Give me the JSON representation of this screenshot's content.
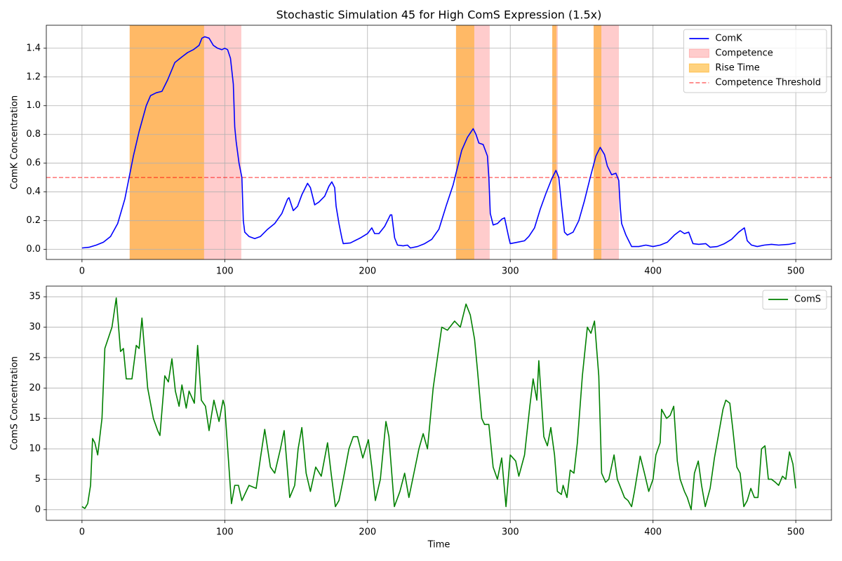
{
  "chart_data": [
    {
      "type": "line",
      "title": "Stochastic Simulation 45 for High ComS Expression (1.5x)",
      "ylabel": "ComK Concentration",
      "xlim": [
        -25,
        525
      ],
      "xticks": [
        0,
        100,
        200,
        300,
        400,
        500
      ],
      "ylim": [
        -0.07,
        1.56
      ],
      "yticks": [
        {
          "value": 0,
          "label": "0.0"
        },
        {
          "value": 0.2,
          "label": "0.2"
        },
        {
          "value": 0.4,
          "label": "0.4"
        },
        {
          "value": 0.6,
          "label": "0.6"
        },
        {
          "value": 0.8,
          "label": "0.8"
        },
        {
          "value": 1.0,
          "label": "1.0"
        },
        {
          "value": 1.2,
          "label": "1.2"
        },
        {
          "value": 1.4,
          "label": "1.4"
        }
      ],
      "grid": true,
      "legend": "upper right",
      "x": [
        0,
        5,
        10,
        15,
        20,
        25,
        30,
        33,
        36,
        40,
        45,
        48,
        52,
        56,
        60,
        65,
        70,
        74,
        78,
        82,
        84,
        86,
        89,
        92,
        95,
        98,
        100,
        102,
        104,
        106,
        107,
        108,
        110,
        112,
        113,
        114,
        117,
        121,
        125,
        130,
        135,
        140,
        144,
        145,
        148,
        151,
        154,
        158,
        160,
        163,
        166,
        170,
        173,
        175,
        177,
        178,
        180,
        182,
        183,
        188,
        195,
        200,
        203,
        205,
        208,
        212,
        216,
        217,
        219,
        221,
        225,
        228,
        230,
        235,
        240,
        245,
        250,
        255,
        260,
        263,
        266,
        270,
        274,
        276,
        278,
        281,
        284,
        285,
        286,
        288,
        291,
        294,
        296,
        299,
        300,
        305,
        310,
        313,
        317,
        321,
        325,
        329,
        332,
        334,
        336,
        338,
        340,
        344,
        348,
        352,
        356,
        360,
        363,
        366,
        368,
        371,
        374,
        376,
        377,
        378,
        381,
        383,
        385,
        390,
        395,
        400,
        405,
        410,
        415,
        419,
        422,
        425,
        428,
        432,
        437,
        440,
        445,
        450,
        455,
        460,
        464,
        466,
        469,
        473,
        478,
        483,
        488,
        495,
        500
      ],
      "series": [
        {
          "name": "ComK",
          "color": "#0000ff",
          "values": [
            0.01,
            0.015,
            0.03,
            0.05,
            0.09,
            0.18,
            0.35,
            0.5,
            0.65,
            0.82,
            1.0,
            1.07,
            1.09,
            1.1,
            1.18,
            1.3,
            1.34,
            1.37,
            1.39,
            1.42,
            1.47,
            1.48,
            1.47,
            1.42,
            1.4,
            1.39,
            1.4,
            1.39,
            1.33,
            1.15,
            0.85,
            0.75,
            0.6,
            0.5,
            0.2,
            0.12,
            0.09,
            0.075,
            0.09,
            0.14,
            0.18,
            0.25,
            0.35,
            0.36,
            0.27,
            0.3,
            0.38,
            0.46,
            0.43,
            0.31,
            0.33,
            0.37,
            0.44,
            0.47,
            0.43,
            0.3,
            0.18,
            0.08,
            0.04,
            0.045,
            0.08,
            0.11,
            0.15,
            0.11,
            0.11,
            0.16,
            0.24,
            0.24,
            0.08,
            0.03,
            0.025,
            0.03,
            0.01,
            0.02,
            0.04,
            0.07,
            0.14,
            0.3,
            0.45,
            0.57,
            0.69,
            0.78,
            0.84,
            0.8,
            0.74,
            0.73,
            0.65,
            0.5,
            0.25,
            0.17,
            0.18,
            0.21,
            0.22,
            0.08,
            0.04,
            0.05,
            0.06,
            0.09,
            0.15,
            0.28,
            0.39,
            0.49,
            0.55,
            0.5,
            0.3,
            0.12,
            0.1,
            0.12,
            0.2,
            0.34,
            0.5,
            0.65,
            0.71,
            0.66,
            0.58,
            0.52,
            0.53,
            0.48,
            0.3,
            0.18,
            0.1,
            0.06,
            0.02,
            0.02,
            0.03,
            0.02,
            0.03,
            0.05,
            0.1,
            0.13,
            0.11,
            0.12,
            0.04,
            0.035,
            0.04,
            0.015,
            0.02,
            0.04,
            0.07,
            0.12,
            0.15,
            0.06,
            0.03,
            0.02,
            0.03,
            0.035,
            0.03,
            0.035,
            0.045
          ]
        }
      ],
      "shaded": [
        {
          "name": "Competence",
          "color": "rgba(255,0,0,0.2)",
          "spans": [
            [
              33.4,
              111.6
            ],
            [
              262,
              285.6
            ],
            [
              329.4,
              333.3
            ],
            [
              358.4,
              376.1
            ]
          ]
        },
        {
          "name": "Rise Time",
          "color": "rgba(255,165,0,0.5)",
          "spans": [
            [
              33.4,
              85.5
            ],
            [
              262,
              274.8
            ],
            [
              329.4,
              332.4
            ],
            [
              358.4,
              363.8
            ]
          ]
        }
      ],
      "threshold": {
        "name": "Competence Threshold",
        "value": 0.5,
        "color": "rgba(255,0,0,0.5)"
      }
    },
    {
      "type": "line",
      "xlabel": "Time",
      "ylabel": "ComS Concentration",
      "xlim": [
        -25,
        525
      ],
      "xticks": [
        0,
        100,
        200,
        300,
        400,
        500
      ],
      "ylim": [
        -1.75,
        36.75
      ],
      "yticks": [
        0,
        5,
        10,
        15,
        20,
        25,
        30,
        35
      ],
      "grid": true,
      "legend": "upper right",
      "x": [
        0,
        2,
        4,
        6,
        7.4,
        9,
        11,
        14,
        16,
        21,
        24,
        27,
        29,
        31,
        35,
        38,
        40,
        42,
        46,
        50,
        53,
        54.6,
        58,
        60.5,
        63,
        65.4,
        68,
        70,
        73,
        75,
        78.7,
        81,
        83.6,
        86.5,
        89,
        92.4,
        96,
        98.8,
        100,
        104.7,
        107,
        109.6,
        112,
        117,
        122,
        125,
        128,
        132,
        135,
        139,
        141.6,
        145.5,
        149,
        151.4,
        154,
        157,
        160,
        163.7,
        167.6,
        172,
        174.5,
        177.5,
        180,
        183,
        187,
        190,
        193,
        196.7,
        200.6,
        203,
        205.5,
        209,
        212.9,
        215,
        218.8,
        222.7,
        226,
        229,
        232.5,
        236,
        239,
        242,
        246,
        249,
        252,
        256,
        261,
        265,
        269,
        272,
        275,
        277,
        280,
        282,
        285,
        288,
        291,
        294,
        297,
        300,
        303.8,
        306,
        310,
        313.7,
        316,
        318.6,
        320,
        323.5,
        326,
        328.4,
        331,
        333,
        335.8,
        337,
        339.7,
        342,
        344.6,
        347,
        350.5,
        354,
        356.5,
        359,
        362,
        364,
        366.8,
        369,
        372.7,
        375,
        380,
        382.5,
        385,
        387,
        391,
        394,
        397,
        400,
        402,
        405,
        406,
        409.5,
        412,
        414.5,
        417,
        419,
        422,
        424,
        426.7,
        429,
        431.7,
        434,
        436.6,
        440,
        443,
        446.4,
        449,
        451,
        453.8,
        456,
        458.7,
        461,
        463.6,
        466,
        468.5,
        471,
        473.5,
        476,
        478.4,
        480.8,
        483,
        485.7,
        488,
        490.7,
        493,
        495.6,
        498,
        500
      ],
      "series": [
        {
          "name": "ComS",
          "color": "#008000",
          "values": [
            0.5,
            0.2,
            1,
            4,
            11.7,
            11,
            9,
            15,
            26.5,
            30,
            34.8,
            26,
            26.5,
            21.5,
            21.5,
            27,
            26.5,
            31.5,
            20,
            15,
            13,
            12.2,
            22,
            21,
            24.8,
            19.5,
            17,
            20.5,
            16.7,
            19.5,
            17.5,
            27,
            18,
            17,
            13,
            18,
            14.5,
            18,
            17,
            1,
            4,
            4,
            1.5,
            4,
            3.5,
            8.5,
            13.2,
            7,
            6,
            10,
            13,
            2,
            4,
            10,
            13.5,
            6,
            3,
            7,
            5.5,
            11,
            6,
            0.5,
            1.5,
            5,
            10,
            12,
            12,
            8.5,
            11.5,
            7,
            1.5,
            5,
            14.5,
            12,
            0.5,
            3,
            6,
            2,
            6,
            10,
            12.5,
            10,
            20,
            25,
            30,
            29.5,
            31,
            30,
            33.8,
            32,
            28,
            23,
            15,
            14,
            14,
            7,
            5,
            8.5,
            0.5,
            9,
            8,
            5.5,
            9,
            17,
            21.5,
            18,
            24.5,
            12,
            10.5,
            13.5,
            9,
            3,
            2.5,
            4,
            2,
            6.5,
            6,
            11,
            22,
            30,
            29,
            31,
            22,
            6,
            4.5,
            5,
            9,
            5,
            2,
            1.5,
            0.5,
            3,
            8.8,
            6,
            3,
            5,
            9,
            11,
            16.5,
            15,
            15.5,
            17,
            8,
            5,
            3,
            2,
            0,
            6,
            8,
            4,
            0.5,
            3.5,
            8.5,
            13,
            16.5,
            18,
            17.5,
            13,
            7,
            6,
            0.5,
            1.5,
            3.5,
            2,
            2,
            10,
            10.5,
            5,
            5,
            4.5,
            4,
            5.5,
            5,
            9.5,
            7.5,
            3.5
          ]
        }
      ]
    }
  ]
}
